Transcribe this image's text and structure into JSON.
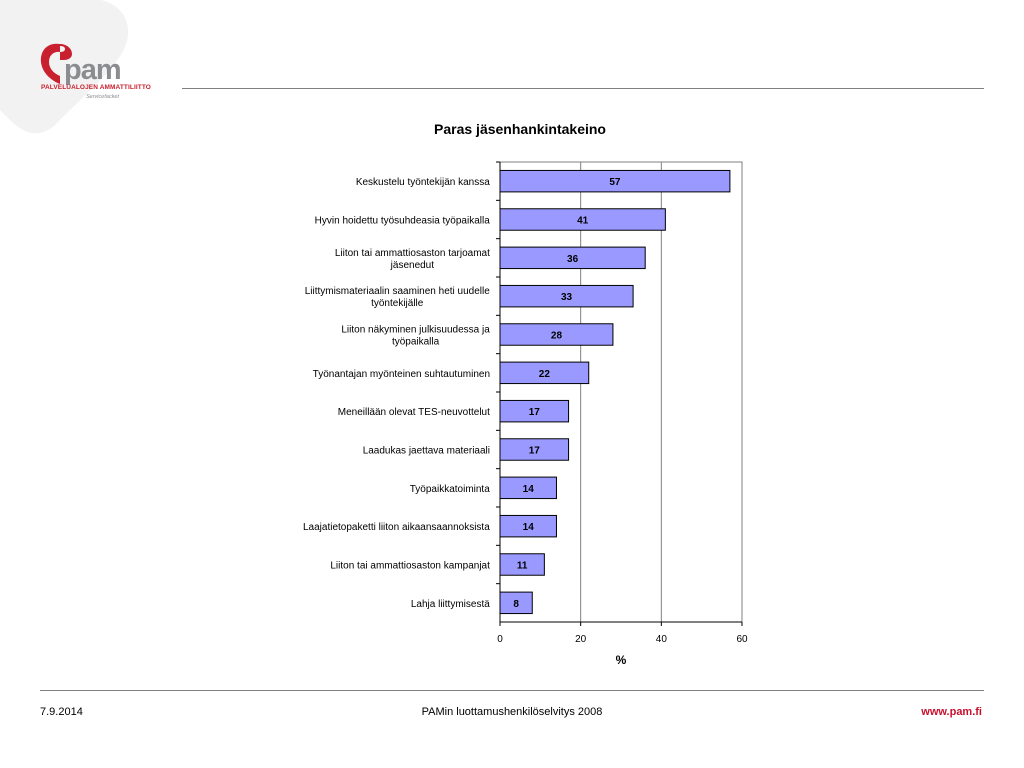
{
  "logo": {
    "name": "pam",
    "org": "PALVELUALOJEN AMMATTILIITTO",
    "sub": "Servicefacket"
  },
  "footer": {
    "date": "7.9.2014",
    "center": "PAMin luottamushenkilöselvitys 2008",
    "url": "www.pam.fi"
  },
  "colors": {
    "bar_fill": "#9999ff",
    "bar_stroke": "#000000",
    "brand_red": "#c8102e",
    "heart_bg": "#f2f2f2"
  },
  "chart_data": {
    "type": "bar",
    "orientation": "horizontal",
    "title": "Paras jäsenhankintakeino",
    "xlabel": "%",
    "ylabel": "",
    "xlim": [
      0,
      60
    ],
    "xticks": [
      0,
      20,
      40,
      60
    ],
    "grid": "vertical",
    "legend": "none",
    "categories": [
      [
        "Keskustelu työntekijän kanssa"
      ],
      [
        "Hyvin hoidettu työsuhdeasia työpaikalla"
      ],
      [
        "Liiton tai ammattiosaston tarjoamat",
        "jäsenedut"
      ],
      [
        "Liittymismateriaalin saaminen heti uudelle",
        "työntekijälle"
      ],
      [
        "Liiton näkyminen julkisuudessa ja",
        "työpaikalla"
      ],
      [
        "Työnantajan myönteinen suhtautuminen"
      ],
      [
        "Meneillään olevat TES-neuvottelut"
      ],
      [
        "Laadukas jaettava materiaali"
      ],
      [
        "Työpaikkatoiminta"
      ],
      [
        "Laajatietopaketti liiton aikaansaannoksista"
      ],
      [
        "Liiton tai ammattiosaston kampanjat"
      ],
      [
        "Lahja liittymisestä"
      ]
    ],
    "values": [
      57,
      41,
      36,
      33,
      28,
      22,
      17,
      17,
      14,
      14,
      11,
      8
    ]
  }
}
